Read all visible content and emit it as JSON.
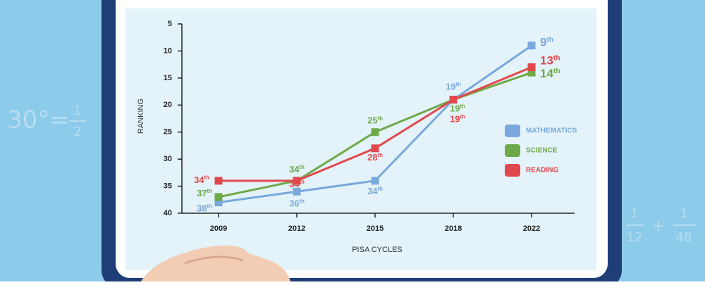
{
  "chart_data": {
    "type": "line",
    "categories": [
      "2009",
      "2012",
      "2015",
      "2018",
      "2022"
    ],
    "series": [
      {
        "name": "MATHEMATICS",
        "color": "#7aa8dc",
        "values": [
          38,
          36,
          34,
          19,
          9
        ],
        "value_labels": [
          "38th",
          "36th",
          "34th",
          "19th",
          "9th"
        ]
      },
      {
        "name": "SCIENCE",
        "color": "#6ea94a",
        "values": [
          37,
          34,
          25,
          19,
          14
        ],
        "value_labels": [
          "37th",
          "34th",
          "25th",
          "19th",
          "14th"
        ]
      },
      {
        "name": "READING",
        "color": "#e1484d",
        "values": [
          34,
          34,
          28,
          19,
          13
        ],
        "value_labels": [
          "34th",
          "34th",
          "28th",
          "19th",
          "13th"
        ]
      }
    ],
    "ylim": [
      5,
      40
    ],
    "yticks": [
      5,
      10,
      15,
      20,
      25,
      30,
      35,
      40
    ],
    "y_inverted": true,
    "ylabel": "RANKING",
    "xlabel": "PISA CYCLES",
    "legend": "right"
  },
  "decorations": {
    "left": "30°=",
    "left_fraction": [
      "1",
      "2"
    ],
    "right_fractions": [
      [
        "1",
        "12"
      ],
      [
        "1",
        "48"
      ]
    ],
    "right_operator": "+"
  }
}
